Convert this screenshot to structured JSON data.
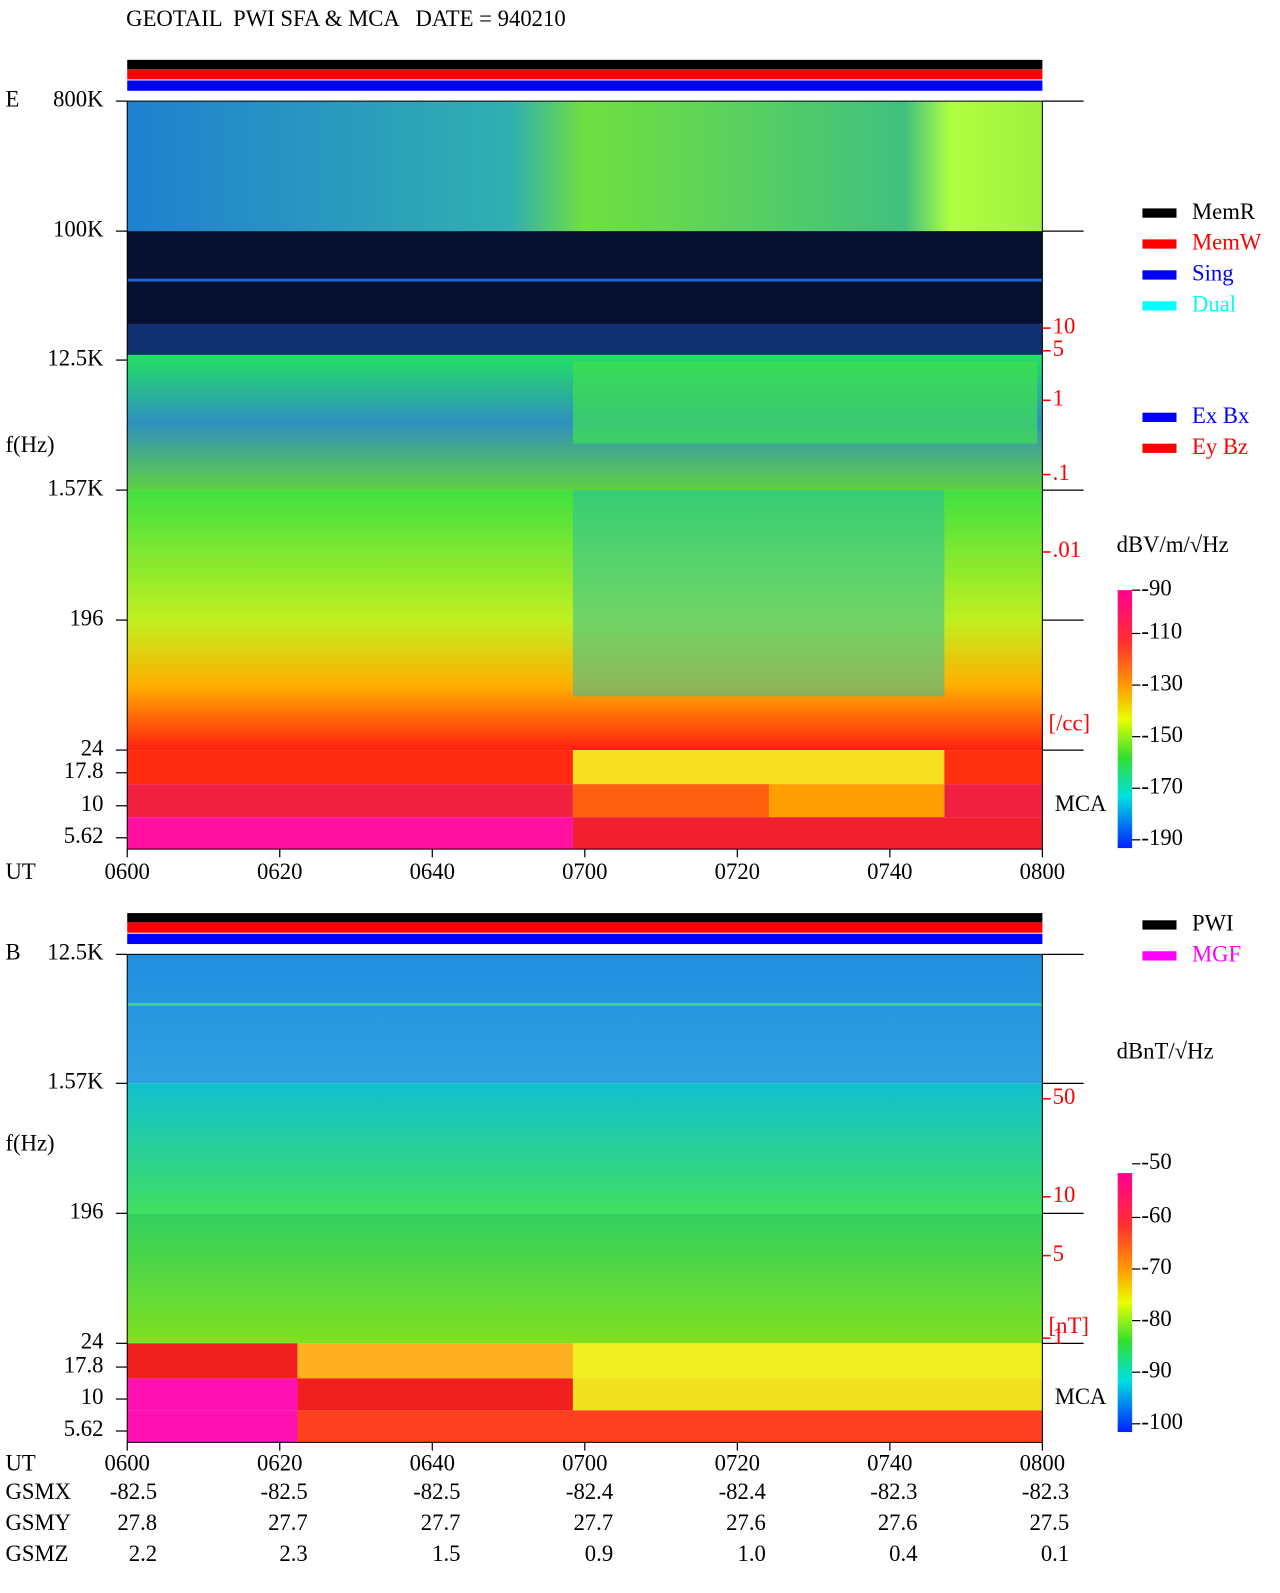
{
  "header": {
    "title": "GEOTAIL  PWI SFA & MCA   DATE = 940210"
  },
  "panels": [
    {
      "label": "E",
      "y_label": "f(Hz)",
      "freq_ticks": [
        "800K",
        "100K",
        "12.5K",
        "1.57K",
        "196",
        "24",
        "17.8",
        "10",
        "5.62"
      ],
      "density_ticks": [
        "10",
        "5",
        "1",
        ".1",
        ".01"
      ],
      "density_unit": "[/cc]",
      "mca_label": "MCA",
      "time_label": "UT",
      "time_ticks": [
        "0600",
        "0620",
        "0640",
        "0700",
        "0720",
        "0740",
        "0800"
      ],
      "colorbar": {
        "unit": "dBV/m/√Hz",
        "ticks": [
          "-90",
          "-110",
          "-130",
          "-150",
          "-170",
          "-190"
        ]
      }
    },
    {
      "label": "B",
      "y_label": "f(Hz)",
      "freq_ticks": [
        "12.5K",
        "1.57K",
        "196",
        "24",
        "17.8",
        "10",
        "5.62"
      ],
      "density_ticks": [
        "50",
        "10",
        "5",
        "1"
      ],
      "density_unit": "[nT]",
      "mca_label": "MCA",
      "time_label": "UT",
      "time_ticks": [
        "0600",
        "0620",
        "0640",
        "0700",
        "0720",
        "0740",
        "0800"
      ],
      "colorbar": {
        "unit": "dBnT/√Hz",
        "ticks": [
          "-50",
          "-60",
          "-70",
          "-80",
          "-90",
          "-100"
        ]
      }
    }
  ],
  "legends": {
    "status": [
      {
        "name": "MemR",
        "color": "#000000"
      },
      {
        "name": "MemW",
        "color": "#ff0000"
      },
      {
        "name": "Sing",
        "color": "#0000ff"
      },
      {
        "name": "Dual",
        "color": "#00ffff"
      }
    ],
    "components": [
      {
        "name": "Ex Bx",
        "color": "#0000ff"
      },
      {
        "name": "Ey Bz",
        "color": "#ff0000"
      }
    ],
    "sources": [
      {
        "name": "PWI",
        "color": "#000000"
      },
      {
        "name": "MGF",
        "color": "#ff00ff"
      }
    ]
  },
  "orbit": [
    {
      "label": "GSMX",
      "values": [
        "-82.5",
        "-82.5",
        "-82.5",
        "-82.4",
        "-82.4",
        "-82.3",
        "-82.3"
      ]
    },
    {
      "label": "GSMY",
      "values": [
        "27.8",
        "27.7",
        "27.7",
        "27.7",
        "27.6",
        "27.6",
        "27.5"
      ]
    },
    {
      "label": "GSMZ",
      "values": [
        "2.2",
        "2.3",
        "1.5",
        "0.9",
        "1.0",
        "0.4",
        "0.1"
      ]
    }
  ]
}
